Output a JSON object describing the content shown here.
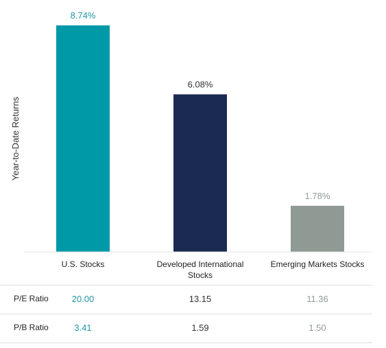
{
  "chart_data": {
    "type": "bar",
    "ylabel": "Year-to-Date Returns",
    "categories": [
      "U.S. Stocks",
      "Developed International Stocks",
      "Emerging Markets Stocks"
    ],
    "category_lines": [
      [
        "U.S. Stocks"
      ],
      [
        "Developed International",
        "Stocks"
      ],
      [
        "Emerging Markets Stocks"
      ]
    ],
    "values": [
      8.74,
      6.08,
      1.78
    ],
    "value_labels": [
      "8.74%",
      "6.08%",
      "1.78%"
    ],
    "ylim": [
      0,
      8.74
    ],
    "grid": false,
    "colors": [
      "#0099a8",
      "#1b2a50",
      "#8f9a95"
    ],
    "label_colors": [
      "#1f97a6",
      "#333333",
      "#8f9a95"
    ]
  },
  "metrics": [
    {
      "name": "P/E Ratio",
      "values": [
        "20.00",
        "13.15",
        "11.36"
      ]
    },
    {
      "name": "P/B Ratio",
      "values": [
        "3.41",
        "1.59",
        "1.50"
      ]
    }
  ]
}
